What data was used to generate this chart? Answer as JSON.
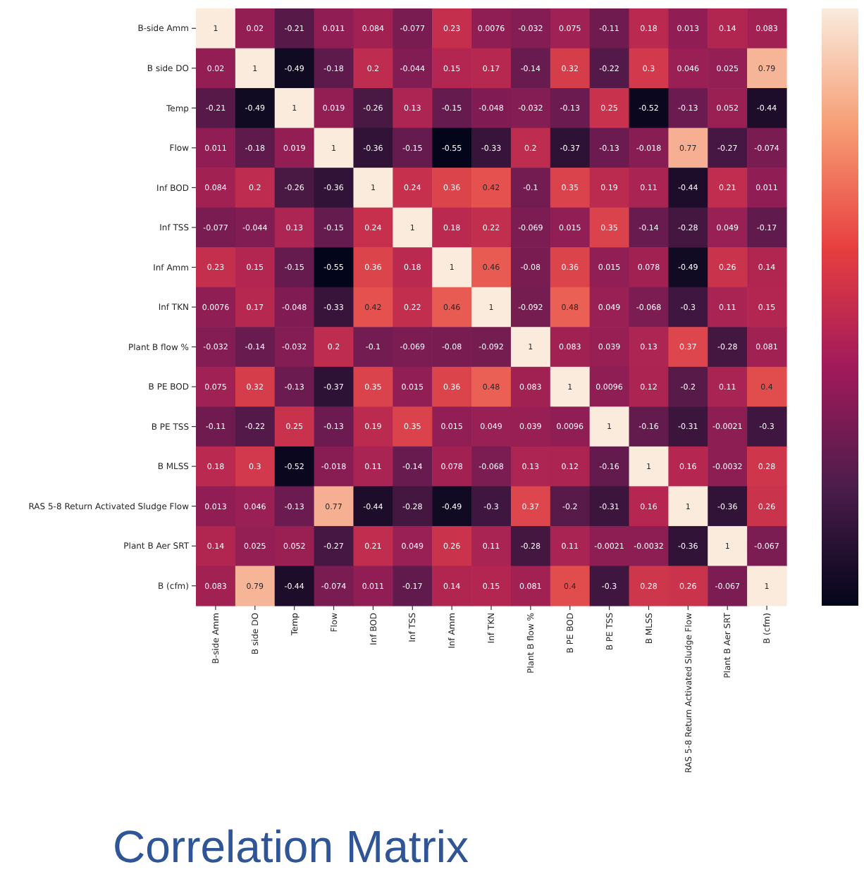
{
  "chart_data": {
    "type": "heatmap",
    "title": "Correlation Matrix",
    "categories": [
      "B-side Amm",
      "B side DO",
      "Temp",
      "Flow",
      "Inf BOD",
      "Inf TSS",
      "Inf Amm",
      "Inf TKN",
      "Plant B flow %",
      "B PE BOD",
      "B PE TSS",
      "B MLSS",
      "RAS 5-8 Return Activated Sludge Flow",
      "Plant B Aer SRT",
      "B (cfm)"
    ],
    "y_categories": [
      "B-side Amm",
      "B side DO",
      "Temp",
      "Flow",
      "Inf BOD",
      "Inf TSS",
      "Inf Amm",
      "Inf TKN",
      "Plant B flow %",
      "B PE BOD",
      "B PE TSS",
      "B MLSS",
      "RAS 5-8 Return Activated Sludge Flow",
      "Plant B Aer SRT",
      "B (cfm)"
    ],
    "cells": [
      [
        1,
        0.02,
        -0.21,
        0.011,
        0.084,
        -0.077,
        0.23,
        0.0076,
        -0.032,
        0.075,
        -0.11,
        0.18,
        0.013,
        0.14,
        0.083
      ],
      [
        0.02,
        1,
        -0.49,
        -0.18,
        0.2,
        -0.044,
        0.15,
        0.17,
        -0.14,
        0.32,
        -0.22,
        0.3,
        0.046,
        0.025,
        0.79
      ],
      [
        -0.21,
        -0.49,
        1,
        0.019,
        -0.26,
        0.13,
        -0.15,
        -0.048,
        -0.032,
        -0.13,
        0.25,
        -0.52,
        -0.13,
        0.052,
        -0.44
      ],
      [
        0.011,
        -0.18,
        0.019,
        1,
        -0.36,
        -0.15,
        -0.55,
        -0.33,
        0.2,
        -0.37,
        -0.13,
        -0.018,
        0.77,
        -0.27,
        -0.074
      ],
      [
        0.084,
        0.2,
        -0.26,
        -0.36,
        1,
        0.24,
        0.36,
        0.42,
        -0.1,
        0.35,
        0.19,
        0.11,
        -0.44,
        0.21,
        0.011
      ],
      [
        -0.077,
        -0.044,
        0.13,
        -0.15,
        0.24,
        1,
        0.18,
        0.22,
        -0.069,
        0.015,
        0.35,
        -0.14,
        -0.28,
        0.049,
        -0.17
      ],
      [
        0.23,
        0.15,
        -0.15,
        -0.55,
        0.36,
        0.18,
        1,
        0.46,
        -0.08,
        0.36,
        0.015,
        0.078,
        -0.49,
        0.26,
        0.14
      ],
      [
        0.0076,
        0.17,
        -0.048,
        -0.33,
        0.42,
        0.22,
        0.46,
        1,
        -0.092,
        0.48,
        0.049,
        -0.068,
        -0.3,
        0.11,
        0.15
      ],
      [
        -0.032,
        -0.14,
        -0.032,
        0.2,
        -0.1,
        -0.069,
        -0.08,
        -0.092,
        1,
        0.083,
        0.039,
        0.13,
        0.37,
        -0.28,
        0.081
      ],
      [
        0.075,
        0.32,
        -0.13,
        -0.37,
        0.35,
        0.015,
        0.36,
        0.48,
        0.083,
        1,
        0.0096,
        0.12,
        -0.2,
        0.11,
        0.4
      ],
      [
        -0.11,
        -0.22,
        0.25,
        -0.13,
        0.19,
        0.35,
        0.015,
        0.049,
        0.039,
        0.0096,
        1,
        -0.16,
        -0.31,
        -0.0021,
        -0.3
      ],
      [
        0.18,
        0.3,
        -0.52,
        -0.018,
        0.11,
        -0.14,
        0.078,
        -0.068,
        0.13,
        0.12,
        -0.16,
        1,
        0.16,
        -0.0032,
        0.28
      ],
      [
        0.013,
        0.046,
        -0.13,
        0.77,
        -0.44,
        -0.28,
        -0.49,
        -0.3,
        0.37,
        -0.2,
        -0.31,
        0.16,
        1,
        -0.36,
        0.26
      ],
      [
        0.14,
        0.025,
        0.052,
        -0.27,
        0.21,
        0.049,
        0.26,
        0.11,
        -0.28,
        0.11,
        -0.0021,
        -0.0032,
        -0.36,
        1,
        -0.067
      ],
      [
        0.083,
        0.79,
        -0.44,
        -0.074,
        0.011,
        -0.17,
        0.14,
        0.15,
        0.081,
        0.4,
        -0.3,
        0.28,
        0.26,
        -0.067,
        1
      ]
    ],
    "data_labels": true
  }
}
